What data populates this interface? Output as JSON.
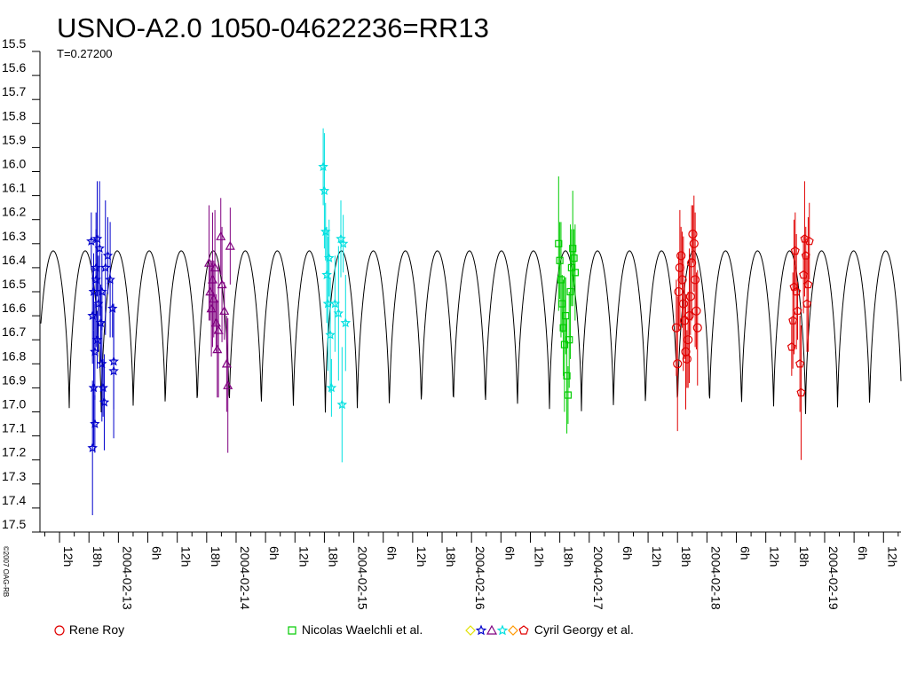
{
  "chart_data": {
    "type": "scatter",
    "title": "USNO-A2.0 1050-04622236=RR13",
    "subtitle": "T=0.27200",
    "copyright": "©2007 OAG-RB",
    "y_axis": {
      "ticks": [
        "15.5",
        "15.6",
        "15.7",
        "15.8",
        "15.9",
        "16.0",
        "16.1",
        "16.2",
        "16.3",
        "16.4",
        "16.5",
        "16.6",
        "16.7",
        "16.8",
        "16.9",
        "17.0",
        "17.1",
        "17.2",
        "17.3",
        "17.4",
        "17.5"
      ],
      "range": [
        15.5,
        17.5
      ],
      "inverted": true
    },
    "x_axis": {
      "tick_labels": [
        "12h",
        "18h",
        "2004-02-13",
        "6h",
        "12h",
        "18h",
        "2004-02-14",
        "6h",
        "12h",
        "18h",
        "2004-02-15",
        "6h",
        "12h",
        "18h",
        "2004-02-16",
        "6h",
        "12h",
        "18h",
        "2004-02-17",
        "6h",
        "12h",
        "18h",
        "2004-02-18",
        "6h",
        "12h",
        "18h",
        "2004-02-19",
        "6h",
        "12h"
      ]
    },
    "model_curve": {
      "period_days": 0.272,
      "max_mag": 16.33,
      "min_mag": 17.02,
      "color": "#000000"
    },
    "series": [
      {
        "name": "Cyril Georgy et al.",
        "observer_group": "georgy",
        "color": "#0000cc",
        "marker": "star",
        "points": [
          {
            "t": 12.77,
            "mag": 16.29
          },
          {
            "t": 12.78,
            "mag": 16.6
          },
          {
            "t": 12.78,
            "mag": 17.15
          },
          {
            "t": 12.79,
            "mag": 16.5
          },
          {
            "t": 12.79,
            "mag": 16.9
          },
          {
            "t": 12.8,
            "mag": 17.05
          },
          {
            "t": 12.8,
            "mag": 16.75
          },
          {
            "t": 12.81,
            "mag": 16.45
          },
          {
            "t": 12.81,
            "mag": 16.4
          },
          {
            "t": 12.82,
            "mag": 16.28
          },
          {
            "t": 12.82,
            "mag": 16.7
          },
          {
            "t": 12.83,
            "mag": 16.55
          },
          {
            "t": 12.84,
            "mag": 16.32
          },
          {
            "t": 12.85,
            "mag": 16.63
          },
          {
            "t": 12.86,
            "mag": 16.8
          },
          {
            "t": 12.87,
            "mag": 16.9
          },
          {
            "t": 12.88,
            "mag": 16.96
          },
          {
            "t": 12.89,
            "mag": 16.4
          },
          {
            "t": 12.91,
            "mag": 16.35
          },
          {
            "t": 12.93,
            "mag": 16.45
          },
          {
            "t": 12.95,
            "mag": 16.57
          },
          {
            "t": 12.96,
            "mag": 16.79
          },
          {
            "t": 12.96,
            "mag": 16.83
          },
          {
            "t": 12.86,
            "mag": 16.5
          }
        ]
      },
      {
        "name": "Cyril Georgy et al.",
        "observer_group": "georgy",
        "color": "#800080",
        "marker": "triangle",
        "points": [
          {
            "t": 13.77,
            "mag": 16.38
          },
          {
            "t": 13.78,
            "mag": 16.5
          },
          {
            "t": 13.79,
            "mag": 16.57
          },
          {
            "t": 13.8,
            "mag": 16.45
          },
          {
            "t": 13.81,
            "mag": 16.53
          },
          {
            "t": 13.82,
            "mag": 16.4
          },
          {
            "t": 13.83,
            "mag": 16.63
          },
          {
            "t": 13.84,
            "mag": 16.74
          },
          {
            "t": 13.85,
            "mag": 16.66
          },
          {
            "t": 13.87,
            "mag": 16.27
          },
          {
            "t": 13.88,
            "mag": 16.47
          },
          {
            "t": 13.9,
            "mag": 16.58
          },
          {
            "t": 13.92,
            "mag": 16.8
          },
          {
            "t": 13.93,
            "mag": 16.89
          },
          {
            "t": 13.95,
            "mag": 16.31
          }
        ]
      },
      {
        "name": "Cyril Georgy et al.",
        "observer_group": "georgy",
        "color": "#00e0e0",
        "marker": "star",
        "points": [
          {
            "t": 14.74,
            "mag": 15.98
          },
          {
            "t": 14.75,
            "mag": 16.08
          },
          {
            "t": 14.76,
            "mag": 16.25
          },
          {
            "t": 14.77,
            "mag": 16.43
          },
          {
            "t": 14.78,
            "mag": 16.55
          },
          {
            "t": 14.79,
            "mag": 16.36
          },
          {
            "t": 14.8,
            "mag": 16.68
          },
          {
            "t": 14.81,
            "mag": 16.9
          },
          {
            "t": 14.84,
            "mag": 16.55
          },
          {
            "t": 14.87,
            "mag": 16.59
          },
          {
            "t": 14.89,
            "mag": 16.28
          },
          {
            "t": 14.9,
            "mag": 16.97
          },
          {
            "t": 14.91,
            "mag": 16.3
          },
          {
            "t": 14.93,
            "mag": 16.63
          }
        ]
      },
      {
        "name": "Nicolas Waelchli et al.",
        "observer_group": "waelchli",
        "color": "#00cc00",
        "marker": "square",
        "points": [
          {
            "t": 16.74,
            "mag": 16.3
          },
          {
            "t": 16.75,
            "mag": 16.37
          },
          {
            "t": 16.76,
            "mag": 16.45
          },
          {
            "t": 16.77,
            "mag": 16.55
          },
          {
            "t": 16.78,
            "mag": 16.65
          },
          {
            "t": 16.79,
            "mag": 16.72
          },
          {
            "t": 16.8,
            "mag": 16.6
          },
          {
            "t": 16.81,
            "mag": 16.85
          },
          {
            "t": 16.82,
            "mag": 16.93
          },
          {
            "t": 16.83,
            "mag": 16.7
          },
          {
            "t": 16.84,
            "mag": 16.5
          },
          {
            "t": 16.85,
            "mag": 16.4
          },
          {
            "t": 16.86,
            "mag": 16.32
          },
          {
            "t": 16.87,
            "mag": 16.36
          },
          {
            "t": 16.88,
            "mag": 16.42
          }
        ]
      },
      {
        "name": "Rene Roy",
        "observer_group": "roy",
        "color": "#e00000",
        "marker": "circle",
        "points": [
          {
            "t": 17.74,
            "mag": 16.65
          },
          {
            "t": 17.75,
            "mag": 16.8
          },
          {
            "t": 17.76,
            "mag": 16.5
          },
          {
            "t": 17.77,
            "mag": 16.4
          },
          {
            "t": 17.78,
            "mag": 16.35
          },
          {
            "t": 17.79,
            "mag": 16.45
          },
          {
            "t": 17.8,
            "mag": 16.55
          },
          {
            "t": 17.81,
            "mag": 16.62
          },
          {
            "t": 17.82,
            "mag": 16.75
          },
          {
            "t": 17.83,
            "mag": 16.78
          },
          {
            "t": 17.84,
            "mag": 16.7
          },
          {
            "t": 17.85,
            "mag": 16.6
          },
          {
            "t": 17.86,
            "mag": 16.52
          },
          {
            "t": 17.87,
            "mag": 16.38
          },
          {
            "t": 17.88,
            "mag": 16.26
          },
          {
            "t": 17.89,
            "mag": 16.3
          },
          {
            "t": 17.9,
            "mag": 16.45
          },
          {
            "t": 17.91,
            "mag": 16.58
          },
          {
            "t": 17.92,
            "mag": 16.65
          }
        ]
      },
      {
        "name": "Cyril Georgy et al.",
        "observer_group": "georgy",
        "color": "#e00000",
        "marker": "pentagon",
        "points": [
          {
            "t": 18.72,
            "mag": 16.73
          },
          {
            "t": 18.73,
            "mag": 16.62
          },
          {
            "t": 18.74,
            "mag": 16.48
          },
          {
            "t": 18.75,
            "mag": 16.33
          },
          {
            "t": 18.76,
            "mag": 16.5
          },
          {
            "t": 18.77,
            "mag": 16.58
          },
          {
            "t": 18.79,
            "mag": 16.8
          },
          {
            "t": 18.8,
            "mag": 16.92
          },
          {
            "t": 18.82,
            "mag": 16.43
          },
          {
            "t": 18.83,
            "mag": 16.28
          },
          {
            "t": 18.84,
            "mag": 16.35
          },
          {
            "t": 18.85,
            "mag": 16.55
          },
          {
            "t": 18.86,
            "mag": 16.47
          },
          {
            "t": 18.87,
            "mag": 16.29
          }
        ]
      }
    ]
  },
  "legend": [
    {
      "label": "Rene Roy",
      "icons": [
        {
          "shape": "circle",
          "color": "#e00000"
        }
      ]
    },
    {
      "label": "Nicolas Waelchli et al.",
      "icons": [
        {
          "shape": "square",
          "color": "#00cc00"
        }
      ]
    },
    {
      "label": "Cyril Georgy et al.",
      "icons": [
        {
          "shape": "diamond",
          "color": "#e0e000"
        },
        {
          "shape": "star",
          "color": "#0000cc"
        },
        {
          "shape": "triangle",
          "color": "#800080"
        },
        {
          "shape": "star",
          "color": "#00e0e0"
        },
        {
          "shape": "diamond-cross",
          "color": "#ff9900"
        },
        {
          "shape": "pentagon",
          "color": "#e00000"
        }
      ]
    }
  ]
}
